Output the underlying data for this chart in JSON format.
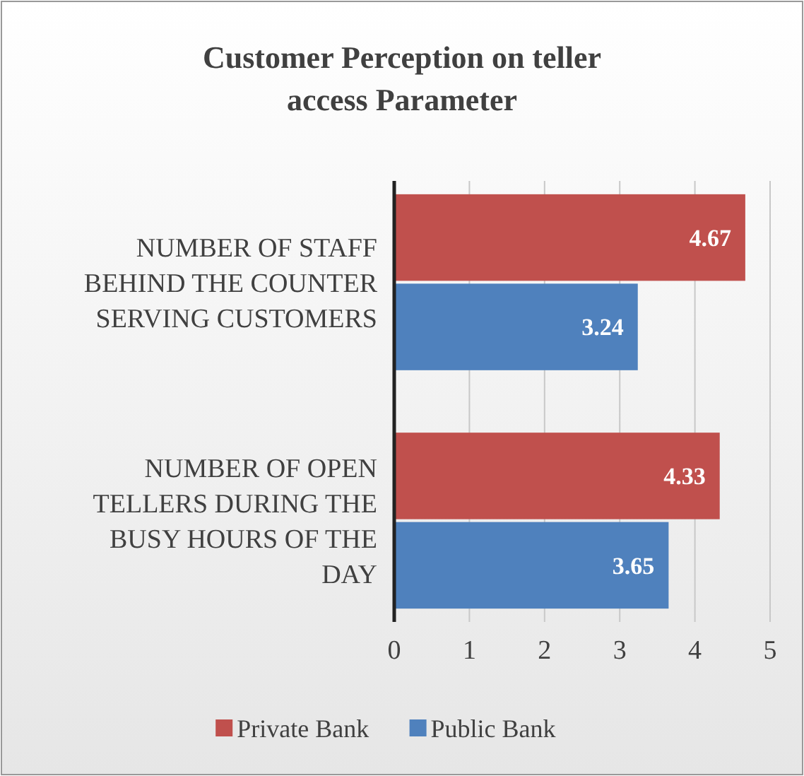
{
  "chart_data": {
    "type": "bar",
    "orientation": "horizontal",
    "title": "Customer Perception on teller access Parameter",
    "categories": [
      "NUMBER OF STAFF BEHIND THE COUNTER SERVING CUSTOMERS",
      "NUMBER OF OPEN TELLERS DURING THE BUSY HOURS OF THE DAY"
    ],
    "series": [
      {
        "name": "Private Bank",
        "color": "#c0504d",
        "values": [
          4.67,
          4.33
        ]
      },
      {
        "name": "Public Bank",
        "color": "#4f81bd",
        "values": [
          3.24,
          3.65
        ]
      }
    ],
    "xlim": [
      0,
      5
    ],
    "xticks": [
      0,
      1,
      2,
      3,
      4,
      5
    ],
    "grid": "x",
    "data_labels": true,
    "legend": "bottom"
  }
}
